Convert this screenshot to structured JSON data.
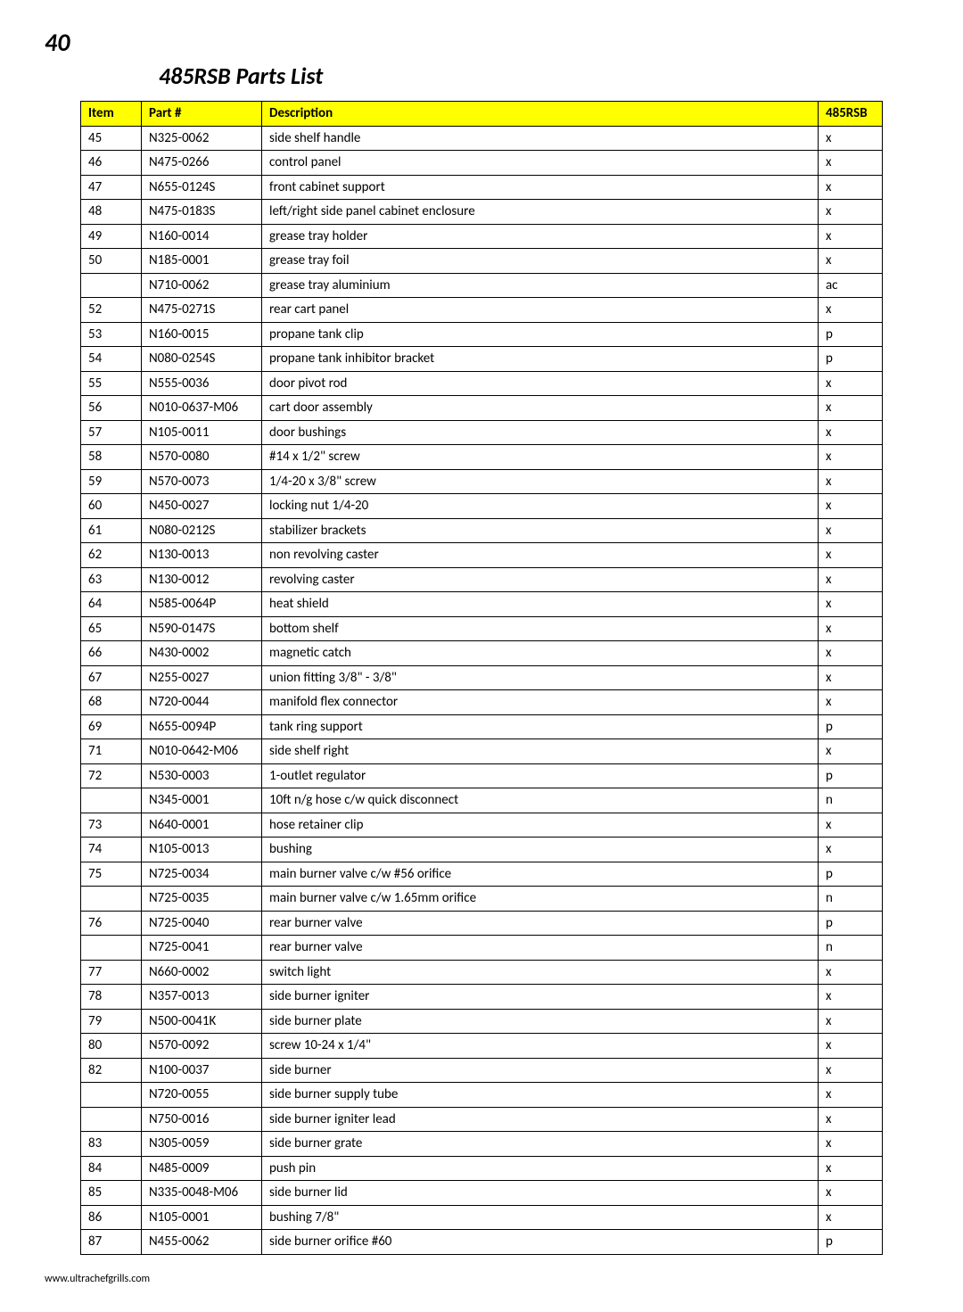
{
  "page_number": "40",
  "title": "485RSB Parts List",
  "footer_url": "www.ultrachefgrills.com",
  "header_bg": "#ffff00",
  "columns": {
    "item": "Item",
    "part": "Part #",
    "desc": "Description",
    "rsb": "485RSB"
  },
  "col_widths": {
    "item": 68,
    "part": 135,
    "rsb": 72
  },
  "rows": [
    {
      "item": "45",
      "part": "N325-0062",
      "desc": "side shelf handle",
      "rsb": "x"
    },
    {
      "item": "46",
      "part": "N475-0266",
      "desc": "control panel",
      "rsb": "x"
    },
    {
      "item": "47",
      "part": "N655-0124S",
      "desc": "front cabinet support",
      "rsb": "x"
    },
    {
      "item": "48",
      "part": "N475-0183S",
      "desc": "left/right side panel cabinet enclosure",
      "rsb": "x"
    },
    {
      "item": "49",
      "part": "N160-0014",
      "desc": "grease tray holder",
      "rsb": "x"
    },
    {
      "item": "50",
      "part": "N185-0001",
      "desc": "grease tray foil",
      "rsb": "x"
    },
    {
      "item": "",
      "part": "N710-0062",
      "desc": "grease tray aluminium",
      "rsb": "ac"
    },
    {
      "item": "52",
      "part": "N475-0271S",
      "desc": "rear cart panel",
      "rsb": "x"
    },
    {
      "item": "53",
      "part": "N160-0015",
      "desc": "propane tank clip",
      "rsb": "p"
    },
    {
      "item": "54",
      "part": "N080-0254S",
      "desc": "propane tank inhibitor bracket",
      "rsb": "p"
    },
    {
      "item": "55",
      "part": "N555-0036",
      "desc": "door pivot rod",
      "rsb": "x"
    },
    {
      "item": "56",
      "part": "N010-0637-M06",
      "desc": "cart door assembly",
      "rsb": "x"
    },
    {
      "item": "57",
      "part": "N105-0011",
      "desc": "door bushings",
      "rsb": "x"
    },
    {
      "item": "58",
      "part": "N570-0080",
      "desc": "#14 x 1/2\" screw",
      "rsb": "x"
    },
    {
      "item": "59",
      "part": "N570-0073",
      "desc": "1/4-20 x 3/8\" screw",
      "rsb": "x"
    },
    {
      "item": "60",
      "part": "N450-0027",
      "desc": "locking nut 1/4-20",
      "rsb": "x"
    },
    {
      "item": "61",
      "part": "N080-0212S",
      "desc": "stabilizer brackets",
      "rsb": "x"
    },
    {
      "item": "62",
      "part": "N130-0013",
      "desc": "non revolving caster",
      "rsb": "x"
    },
    {
      "item": "63",
      "part": "N130-0012",
      "desc": "revolving caster",
      "rsb": "x"
    },
    {
      "item": "64",
      "part": "N585-0064P",
      "desc": "heat shield",
      "rsb": "x"
    },
    {
      "item": "65",
      "part": "N590-0147S",
      "desc": "bottom shelf",
      "rsb": "x"
    },
    {
      "item": "66",
      "part": "N430-0002",
      "desc": "magnetic catch",
      "rsb": "x"
    },
    {
      "item": "67",
      "part": "N255-0027",
      "desc": "union fitting 3/8\" - 3/8\"",
      "rsb": "x"
    },
    {
      "item": "68",
      "part": "N720-0044",
      "desc": "manifold flex connector",
      "rsb": "x"
    },
    {
      "item": "69",
      "part": "N655-0094P",
      "desc": "tank ring support",
      "rsb": "p"
    },
    {
      "item": "71",
      "part": "N010-0642-M06",
      "desc": "side shelf right",
      "rsb": "x"
    },
    {
      "item": "72",
      "part": "N530-0003",
      "desc": "1-outlet regulator",
      "rsb": "p"
    },
    {
      "item": "",
      "part": "N345-0001",
      "desc": "10ft n/g hose c/w  quick disconnect",
      "rsb": "n"
    },
    {
      "item": "73",
      "part": "N640-0001",
      "desc": "hose retainer clip",
      "rsb": "x"
    },
    {
      "item": "74",
      "part": "N105-0013",
      "desc": "bushing",
      "rsb": "x"
    },
    {
      "item": "75",
      "part": "N725-0034",
      "desc": "main burner valve c/w #56 orifice",
      "rsb": "p"
    },
    {
      "item": "",
      "part": "N725-0035",
      "desc": "main burner valve c/w 1.65mm orifice",
      "rsb": "n"
    },
    {
      "item": "76",
      "part": "N725-0040",
      "desc": "rear burner valve",
      "rsb": "p"
    },
    {
      "item": "",
      "part": "N725-0041",
      "desc": "rear burner valve",
      "rsb": "n"
    },
    {
      "item": "77",
      "part": "N660-0002",
      "desc": "switch light",
      "rsb": "x"
    },
    {
      "item": "78",
      "part": "N357-0013",
      "desc": "side burner igniter",
      "rsb": "x"
    },
    {
      "item": "79",
      "part": "N500-0041K",
      "desc": "side burner plate",
      "rsb": "x"
    },
    {
      "item": "80",
      "part": "N570-0092",
      "desc": "screw 10-24 x 1/4\"",
      "rsb": "x"
    },
    {
      "item": "82",
      "part": "N100-0037",
      "desc": "side burner",
      "rsb": "x"
    },
    {
      "item": "",
      "part": "N720-0055",
      "desc": "side burner supply tube",
      "rsb": "x"
    },
    {
      "item": "",
      "part": "N750-0016",
      "desc": "side burner igniter lead",
      "rsb": "x"
    },
    {
      "item": "83",
      "part": "N305-0059",
      "desc": "side burner grate",
      "rsb": "x"
    },
    {
      "item": "84",
      "part": "N485-0009",
      "desc": "push pin",
      "rsb": "x"
    },
    {
      "item": "85",
      "part": "N335-0048-M06",
      "desc": "side burner lid",
      "rsb": "x"
    },
    {
      "item": "86",
      "part": "N105-0001",
      "desc": "bushing 7/8\"",
      "rsb": "x"
    },
    {
      "item": "87",
      "part": "N455-0062",
      "desc": "side burner orifice #60",
      "rsb": "p"
    }
  ]
}
